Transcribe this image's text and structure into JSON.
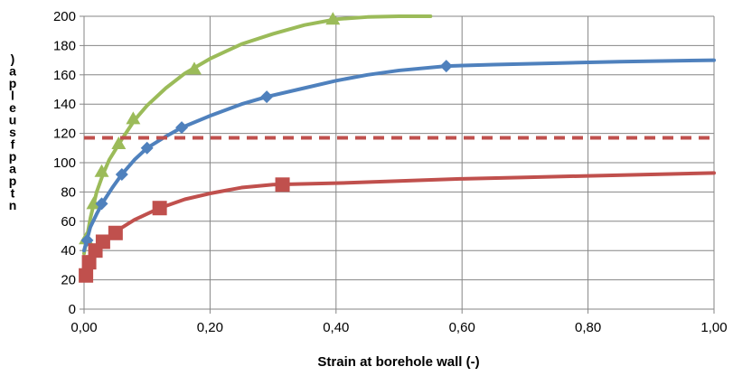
{
  "chart_data": {
    "type": "line",
    "title": "",
    "xlabel": "Strain at borehole wall (-)",
    "ylabel": ") a p l e u s f p a p t n",
    "xlim": [
      0,
      1
    ],
    "ylim": [
      0,
      200
    ],
    "x_ticks": [
      "0,00",
      "0,20",
      "0,40",
      "0,60",
      "0,80",
      "1,00"
    ],
    "y_ticks": [
      "0",
      "20",
      "40",
      "60",
      "80",
      "100",
      "120",
      "140",
      "160",
      "180",
      "200"
    ],
    "grid": true,
    "legend": "none",
    "series": [
      {
        "color": "#9bbb59",
        "marker": "triangle",
        "style": "solid",
        "points": [
          [
            0.003,
            48
          ],
          [
            0.015,
            72
          ],
          [
            0.028,
            94
          ],
          [
            0.055,
            113
          ],
          [
            0.078,
            130
          ],
          [
            0.175,
            164
          ],
          [
            0.395,
            198
          ]
        ],
        "curve": [
          [
            0,
            38
          ],
          [
            0.01,
            62
          ],
          [
            0.02,
            80
          ],
          [
            0.03,
            92
          ],
          [
            0.04,
            102
          ],
          [
            0.06,
            116
          ],
          [
            0.08,
            129
          ],
          [
            0.1,
            139
          ],
          [
            0.13,
            151
          ],
          [
            0.16,
            161
          ],
          [
            0.2,
            171
          ],
          [
            0.25,
            181
          ],
          [
            0.3,
            188
          ],
          [
            0.35,
            194
          ],
          [
            0.4,
            198
          ],
          [
            0.45,
            199.5
          ],
          [
            0.5,
            200
          ],
          [
            0.55,
            200
          ]
        ]
      },
      {
        "color": "#4f81bd",
        "marker": "diamond",
        "style": "solid",
        "points": [
          [
            0.005,
            47
          ],
          [
            0.028,
            72
          ],
          [
            0.06,
            92
          ],
          [
            0.1,
            110
          ],
          [
            0.155,
            124
          ],
          [
            0.29,
            145
          ],
          [
            0.575,
            166
          ]
        ],
        "curve": [
          [
            0,
            40
          ],
          [
            0.01,
            56
          ],
          [
            0.02,
            65
          ],
          [
            0.03,
            73
          ],
          [
            0.045,
            83
          ],
          [
            0.06,
            92
          ],
          [
            0.08,
            102
          ],
          [
            0.1,
            110
          ],
          [
            0.13,
            118
          ],
          [
            0.155,
            124
          ],
          [
            0.2,
            132
          ],
          [
            0.25,
            140
          ],
          [
            0.29,
            145
          ],
          [
            0.35,
            151
          ],
          [
            0.4,
            156
          ],
          [
            0.45,
            160
          ],
          [
            0.5,
            163
          ],
          [
            0.575,
            166
          ],
          [
            0.65,
            167
          ],
          [
            0.75,
            168
          ],
          [
            0.85,
            169
          ],
          [
            1.0,
            170
          ]
        ]
      },
      {
        "color": "#c0504d",
        "marker": "square",
        "style": "solid",
        "points": [
          [
            0.003,
            23
          ],
          [
            0.008,
            32
          ],
          [
            0.018,
            40
          ],
          [
            0.03,
            46
          ],
          [
            0.05,
            52
          ],
          [
            0.12,
            69
          ],
          [
            0.315,
            85
          ]
        ],
        "curve": [
          [
            0,
            20
          ],
          [
            0.005,
            27
          ],
          [
            0.01,
            33
          ],
          [
            0.02,
            40
          ],
          [
            0.03,
            46
          ],
          [
            0.05,
            53
          ],
          [
            0.08,
            61
          ],
          [
            0.12,
            69
          ],
          [
            0.16,
            75
          ],
          [
            0.2,
            79
          ],
          [
            0.25,
            83
          ],
          [
            0.3,
            85
          ],
          [
            0.4,
            86
          ],
          [
            0.5,
            87.5
          ],
          [
            0.6,
            89
          ],
          [
            0.7,
            90
          ],
          [
            0.8,
            91
          ],
          [
            0.9,
            92
          ],
          [
            1.0,
            93
          ]
        ]
      },
      {
        "color": "#c0504d",
        "marker": "none",
        "style": "dashed",
        "points": [],
        "curve": [
          [
            0,
            117
          ],
          [
            1.0,
            117
          ]
        ]
      }
    ]
  }
}
